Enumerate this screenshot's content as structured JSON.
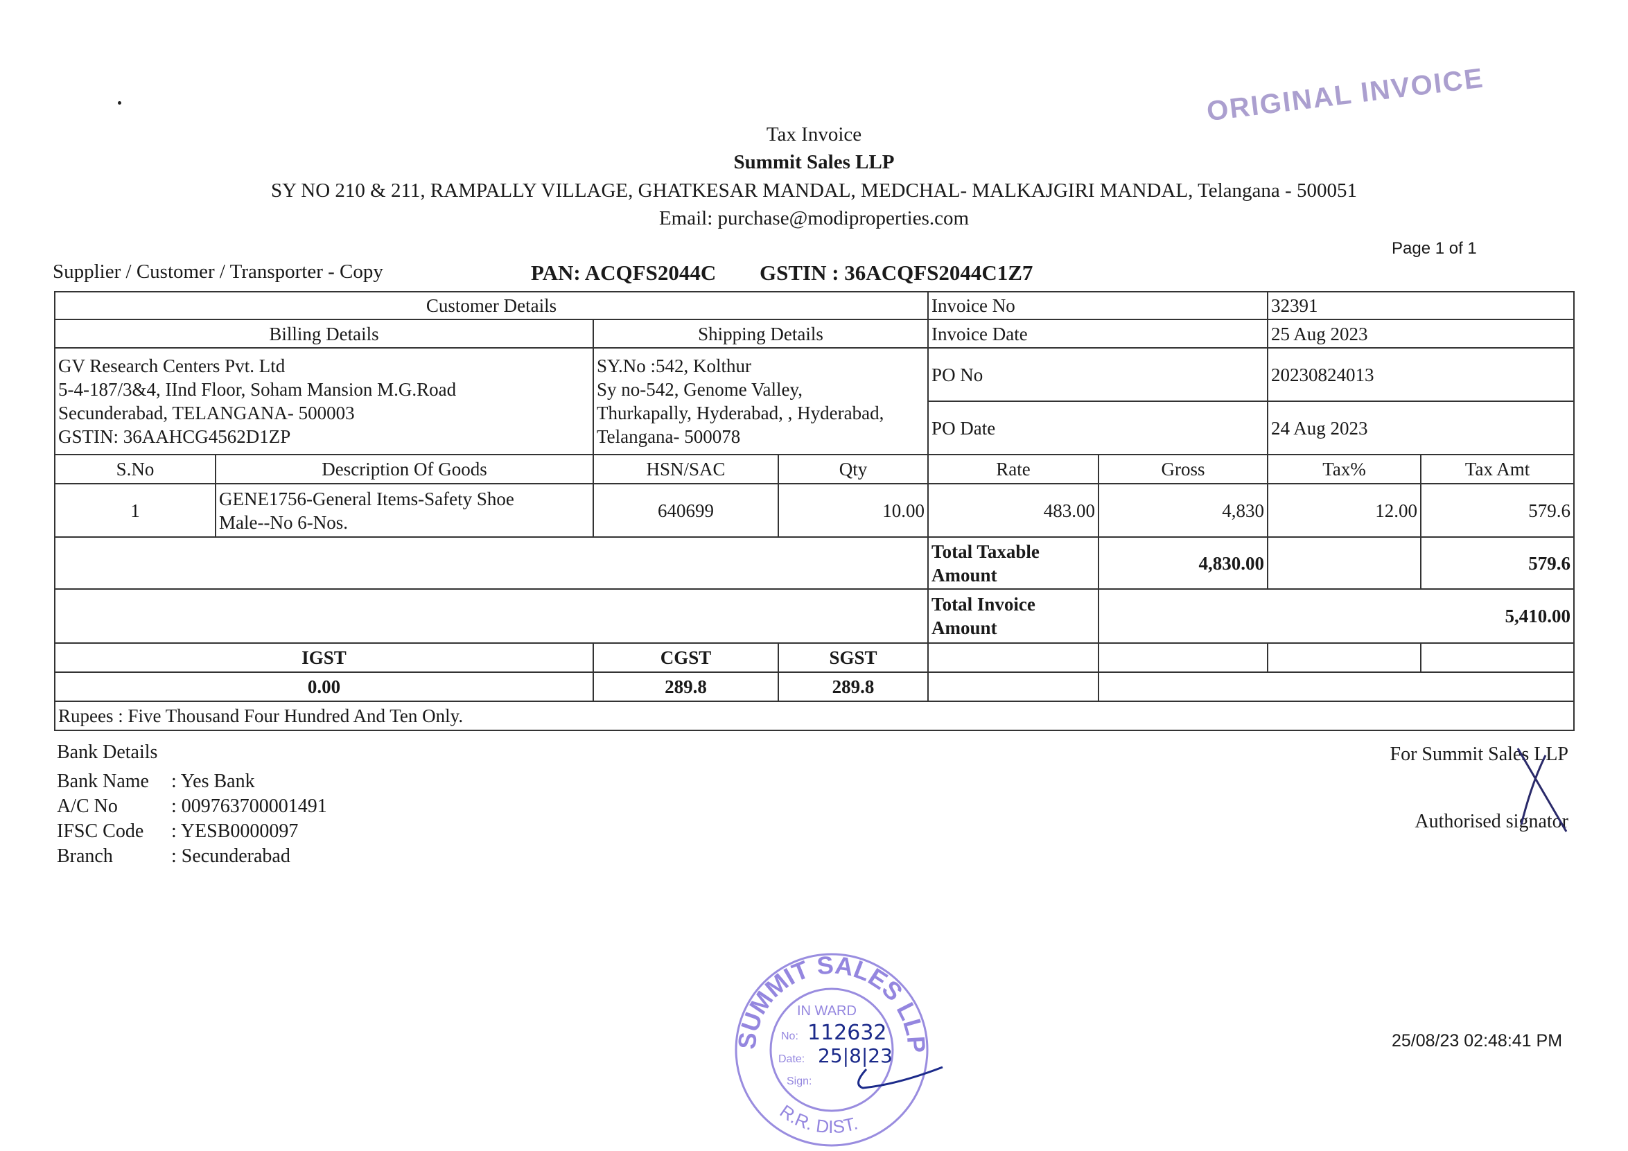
{
  "header": {
    "doc_type": "Tax Invoice",
    "company": "Summit Sales LLP",
    "address": "SY NO 210 & 211, RAMPALLY VILLAGE, GHATKESAR MANDAL, MEDCHAL- MALKAJGIRI MANDAL, Telangana - 500051",
    "email": "Email: purchase@modiproperties.com",
    "original_stamp": "ORIGINAL INVOICE",
    "page": "Page 1 of 1",
    "copy_label": "Supplier / Customer / Transporter - Copy",
    "pan": "PAN: ACQFS2044C",
    "gstin": "GSTIN : 36ACQFS2044C1Z7"
  },
  "table": {
    "customer_details": "Customer Details",
    "billing_details": "Billing Details",
    "shipping_details": "Shipping Details",
    "billing": [
      "GV Research Centers Pvt. Ltd",
      "5-4-187/3&4, IInd Floor, Soham Mansion M.G.Road",
      "Secunderabad, TELANGANA- 500003",
      "GSTIN: 36AAHCG4562D1ZP"
    ],
    "shipping": [
      "SY.No :542, Kolthur",
      "Sy no-542, Genome Valley,",
      "Thurkapally, Hyderabad, , Hyderabad,",
      "Telangana- 500078"
    ],
    "meta": [
      {
        "label": "Invoice No",
        "value": "32391"
      },
      {
        "label": "Invoice Date",
        "value": "25 Aug 2023"
      },
      {
        "label": "PO No",
        "value": "20230824013"
      },
      {
        "label": "PO Date",
        "value": "24 Aug 2023"
      }
    ],
    "columns": [
      "S.No",
      "Description Of Goods",
      "HSN/SAC",
      "Qty",
      "Rate",
      "Gross",
      "Tax%",
      "Tax Amt"
    ],
    "items": [
      {
        "sno": "1",
        "desc1": "GENE1756-General Items-Safety Shoe",
        "desc2": "Male--No 6-Nos.",
        "hsn": "640699",
        "qty": "10.00",
        "rate": "483.00",
        "gross": "4,830",
        "tax_pct": "12.00",
        "tax_amt": "579.6"
      }
    ],
    "total_taxable_label1": "Total Taxable",
    "total_taxable_label2": "Amount",
    "total_taxable_gross": "4,830.00",
    "total_taxable_tax": "579.6",
    "total_invoice_label1": "Total Invoice",
    "total_invoice_label2": "Amount",
    "total_invoice_value": "5,410.00",
    "igst_label": "IGST",
    "cgst_label": "CGST",
    "sgst_label": "SGST",
    "igst": "0.00",
    "cgst": "289.8",
    "sgst": "289.8",
    "in_words": "Rupees : Five Thousand Four Hundred And Ten Only."
  },
  "bank": {
    "title": "Bank Details",
    "rows": [
      {
        "k": "Bank Name",
        "v": ":  Yes Bank"
      },
      {
        "k": "A/C No",
        "v": ":  009763700001491"
      },
      {
        "k": "IFSC Code",
        "v": ":  YESB0000097"
      },
      {
        "k": "Branch",
        "v": ":  Secunderabad"
      }
    ]
  },
  "signature": {
    "for": "For Summit Sales LLP",
    "authorised": "Authorised signator"
  },
  "inward_stamp": {
    "ring_top": "SUMMIT SALES LLP",
    "ring_bottom": "R.R. DIST.",
    "inward": "IN WARD",
    "no_label": "No:",
    "no": "112632",
    "date_label": "Date:",
    "date": "25|8|23",
    "sign_label": "Sign:"
  },
  "timestamp": "25/08/23 02:48:41 PM"
}
